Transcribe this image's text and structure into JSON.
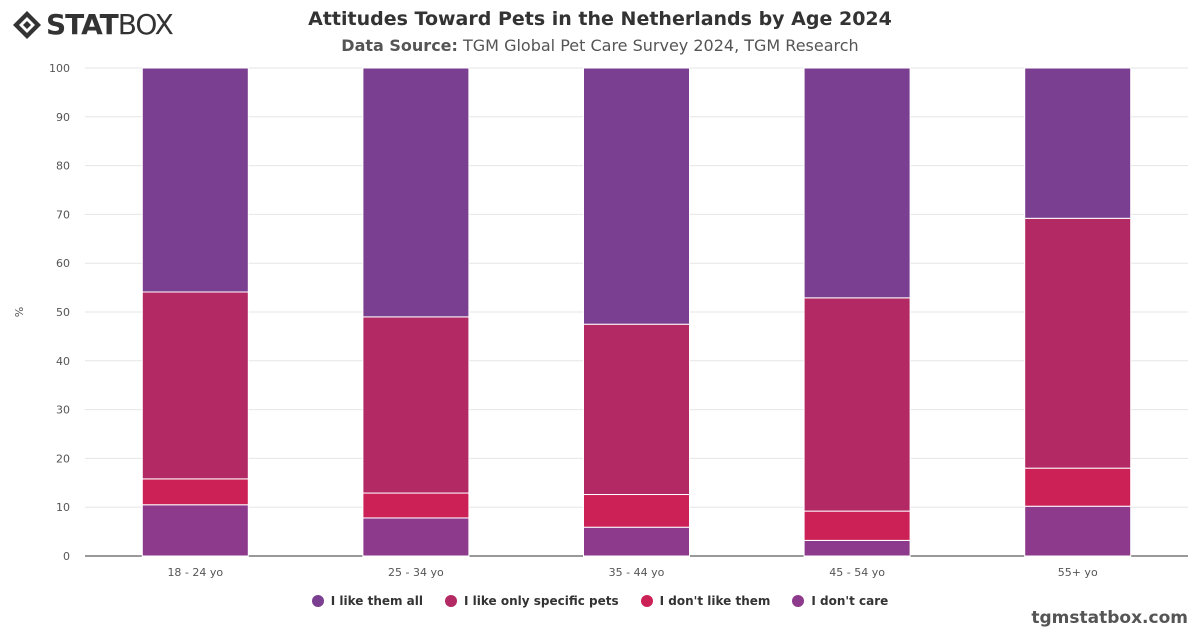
{
  "brand": {
    "bold": "STAT",
    "light": "BOX"
  },
  "title": "Attitudes Toward Pets in the Netherlands by Age 2024",
  "subtitle": {
    "label": "Data Source:",
    "text": " TGM Global Pet Care Survey 2024, TGM Research"
  },
  "watermark": "tgmstatbox.com",
  "chart_data": {
    "type": "bar",
    "stacked": true,
    "categories": [
      "18 - 24 yo",
      "25 - 34 yo",
      "35 - 44 yo",
      "45 - 54 yo",
      "55+ yo"
    ],
    "ylabel": "%",
    "ylim": [
      0,
      100
    ],
    "yticks": [
      0,
      10,
      20,
      30,
      40,
      50,
      60,
      70,
      80,
      90,
      100
    ],
    "grid": "horizontal",
    "legend_position": "bottom",
    "series": [
      {
        "name": "I don't care",
        "color": "#8e3a8c",
        "values": [
          10.5,
          7.8,
          5.9,
          3.2,
          10.2
        ]
      },
      {
        "name": "I don't like them",
        "color": "#cc2157",
        "values": [
          5.3,
          5.1,
          6.7,
          6.0,
          7.8
        ]
      },
      {
        "name": "I like only specific pets",
        "color": "#b22964",
        "values": [
          38.3,
          36.1,
          34.9,
          43.7,
          51.2
        ]
      },
      {
        "name": "I like them all",
        "color": "#7b3f91",
        "values": [
          45.9,
          51.0,
          52.5,
          47.1,
          30.8
        ]
      }
    ]
  },
  "legend": [
    {
      "label": "I like them all",
      "color": "#7b3f91"
    },
    {
      "label": "I like only specific pets",
      "color": "#b22964"
    },
    {
      "label": "I don't like them",
      "color": "#cc2157"
    },
    {
      "label": "I don't care",
      "color": "#8e3a8c"
    }
  ]
}
